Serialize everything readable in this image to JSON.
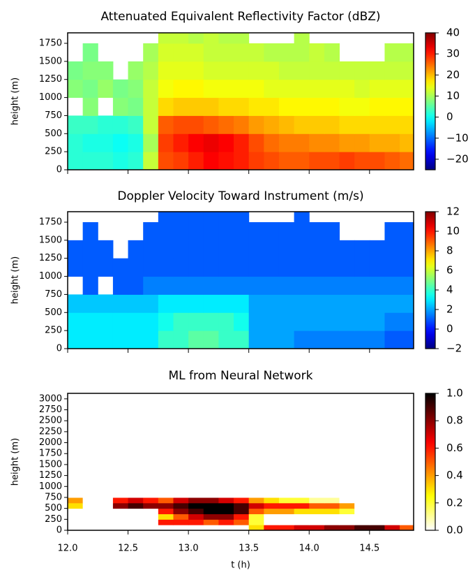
{
  "chart_data": [
    {
      "type": "heatmap",
      "title": "Attenuated Equivalent Reflectivity Factor (dBZ)",
      "ylabel": "height (m)",
      "colormap": "jet",
      "xbins": [
        12.0,
        12.125,
        12.25,
        12.375,
        12.5,
        12.625,
        12.75,
        12.875,
        13.0,
        13.125,
        13.25,
        13.375,
        13.5,
        13.625,
        13.75,
        13.875,
        14.0,
        14.125,
        14.25,
        14.375,
        14.5,
        14.625,
        14.75,
        14.865
      ],
      "ybins": [
        0,
        250,
        500,
        750,
        1000,
        1250,
        1500,
        1750,
        1895
      ],
      "values": [
        [
          2,
          2,
          2,
          1,
          2,
          12,
          27,
          28,
          30,
          32,
          31,
          30,
          28,
          27,
          26,
          26,
          27,
          27,
          28,
          27,
          27,
          26,
          25
        ],
        [
          2,
          1,
          1,
          0,
          1,
          10,
          28,
          30,
          32,
          33,
          32,
          30,
          27,
          25,
          24,
          24,
          23,
          23,
          22,
          22,
          21,
          21,
          20
        ],
        [
          3,
          3,
          2,
          2,
          3,
          12,
          26,
          27,
          27,
          26,
          25,
          24,
          22,
          21,
          20,
          19,
          19,
          19,
          18,
          18,
          18,
          18,
          18
        ],
        [
          null,
          8,
          null,
          8,
          7,
          12,
          18,
          19,
          19,
          19,
          18,
          18,
          17,
          17,
          16,
          16,
          16,
          16,
          15,
          15,
          16,
          16,
          16
        ],
        [
          8,
          7,
          9,
          7,
          8,
          12,
          15,
          16,
          16,
          15,
          15,
          15,
          15,
          14,
          14,
          14,
          14,
          14,
          14,
          13,
          14,
          14,
          14
        ],
        [
          7,
          8,
          8,
          null,
          9,
          11,
          14,
          14,
          14,
          13,
          13,
          13,
          13,
          13,
          12,
          12,
          12,
          12,
          12,
          12,
          12,
          12,
          12
        ],
        [
          null,
          7,
          null,
          null,
          null,
          10,
          13,
          13,
          13,
          12,
          12,
          12,
          12,
          11,
          11,
          11,
          12,
          11,
          null,
          null,
          null,
          11,
          11
        ],
        [
          null,
          null,
          null,
          null,
          null,
          null,
          12,
          12,
          11,
          12,
          11,
          11,
          null,
          null,
          null,
          11,
          null,
          null,
          null,
          null,
          null,
          null,
          null
        ]
      ],
      "xlim": [
        12.0,
        14.865
      ],
      "xticks": [
        12,
        12.5,
        13,
        13.5,
        14,
        14.5
      ],
      "ylim": [
        0,
        1895
      ],
      "yticks": [
        0,
        250,
        500,
        750,
        1000,
        1250,
        1500,
        1750
      ],
      "clim": [
        -25,
        40
      ],
      "cticks": [
        {
          "value": -20,
          "label": "−20"
        },
        {
          "value": -10,
          "label": "−10"
        },
        0,
        10,
        20,
        30,
        40
      ]
    },
    {
      "type": "heatmap",
      "title": "Doppler Velocity Toward Instrument (m/s)",
      "ylabel": "height (m)",
      "colormap": "jet",
      "xbins": [
        12.0,
        12.125,
        12.25,
        12.375,
        12.5,
        12.625,
        12.75,
        12.875,
        13.0,
        13.125,
        13.25,
        13.375,
        13.5,
        13.625,
        13.75,
        13.875,
        14.0,
        14.125,
        14.25,
        14.375,
        14.5,
        14.625,
        14.75,
        14.865
      ],
      "ybins": [
        0,
        250,
        500,
        750,
        1000,
        1250,
        1500,
        1750,
        1895
      ],
      "values": [
        [
          3,
          3,
          3,
          3,
          3,
          3,
          4,
          4,
          4.5,
          4.5,
          4,
          4,
          2,
          2,
          2,
          1.5,
          1.5,
          1.5,
          1.5,
          1.5,
          1.5,
          1,
          1
        ],
        [
          3,
          3,
          3,
          3,
          3,
          3,
          3.5,
          4,
          4,
          4,
          4,
          3.5,
          2,
          2,
          2,
          2,
          2,
          2,
          2,
          2,
          2,
          1.5,
          1.5
        ],
        [
          2.5,
          2.5,
          2.5,
          2.5,
          2.5,
          2.5,
          3,
          3,
          3,
          3,
          3,
          3,
          2,
          2,
          2,
          2,
          2,
          2,
          2,
          2,
          2,
          2,
          2
        ],
        [
          null,
          1,
          null,
          1,
          1,
          1.5,
          1.5,
          1.5,
          1.5,
          1.5,
          1.5,
          1.5,
          1.5,
          1.5,
          1.5,
          1.5,
          1.5,
          1.5,
          1.5,
          1.5,
          1.5,
          1.5,
          1.5
        ],
        [
          1,
          1,
          1,
          1,
          1,
          1,
          1,
          1,
          1,
          1,
          1,
          1,
          1,
          1,
          1,
          1,
          1,
          1,
          1,
          1,
          1,
          1,
          1
        ],
        [
          1,
          1,
          1,
          null,
          1,
          1,
          1,
          1,
          1,
          1,
          1,
          1,
          1,
          1,
          1,
          1,
          1,
          1,
          1,
          1,
          1,
          1,
          1
        ],
        [
          null,
          1,
          null,
          null,
          null,
          1,
          1,
          1,
          1,
          1,
          1,
          1,
          1,
          1,
          1,
          1,
          1,
          1,
          null,
          null,
          null,
          1,
          1
        ],
        [
          null,
          null,
          null,
          null,
          null,
          null,
          1,
          1,
          1,
          1,
          1,
          1,
          null,
          null,
          null,
          1,
          null,
          null,
          null,
          null,
          null,
          null,
          null
        ]
      ],
      "xlim": [
        12.0,
        14.865
      ],
      "xticks": [
        12,
        12.5,
        13,
        13.5,
        14,
        14.5
      ],
      "ylim": [
        0,
        1895
      ],
      "yticks": [
        0,
        250,
        500,
        750,
        1000,
        1250,
        1500,
        1750
      ],
      "clim": [
        -2,
        12
      ],
      "cticks": [
        {
          "value": -2,
          "label": "−2"
        },
        0,
        2,
        4,
        6,
        8,
        10,
        12
      ]
    },
    {
      "type": "heatmap",
      "title": "ML from Neural Network",
      "ylabel": "height (m)",
      "xlabel": "t (h)",
      "colormap": "hot_r",
      "xbins": [
        12.0,
        12.125,
        12.25,
        12.375,
        12.5,
        12.625,
        12.75,
        12.875,
        13.0,
        13.125,
        13.25,
        13.375,
        13.5,
        13.625,
        13.75,
        13.875,
        14.0,
        14.125,
        14.25,
        14.375,
        14.5,
        14.625,
        14.75,
        14.865
      ],
      "ybins": [
        0,
        125,
        250,
        375,
        500,
        625,
        750,
        3125
      ],
      "values": [
        [
          0,
          0,
          0,
          0,
          0,
          0,
          0,
          0,
          0,
          0,
          0,
          0,
          0.3,
          0.6,
          0.6,
          0.7,
          0.7,
          0.8,
          0.8,
          0.9,
          0.9,
          0.7,
          0.5
        ],
        [
          0,
          0,
          0,
          0,
          0,
          0,
          0.6,
          0.6,
          0.6,
          0.5,
          0.6,
          0.5,
          0.2,
          0,
          0,
          0,
          0,
          0,
          0,
          0,
          0,
          0,
          0
        ],
        [
          0,
          0,
          0,
          0,
          0,
          0,
          0.3,
          0.5,
          0.7,
          0.8,
          0.8,
          0.6,
          0.2,
          0,
          0,
          0,
          0,
          0,
          0,
          0,
          0,
          0,
          0
        ],
        [
          0,
          0,
          0,
          0,
          0,
          0,
          0.6,
          0.8,
          0.9,
          1,
          1,
          0.9,
          0.5,
          0.4,
          0.4,
          0.3,
          0.3,
          0.3,
          0.2,
          0,
          0,
          0,
          0
        ],
        [
          0.3,
          0,
          0,
          0.8,
          0.9,
          0.8,
          0.8,
          0.9,
          1,
          1,
          1,
          0.9,
          0.7,
          0.6,
          0.6,
          0.6,
          0.5,
          0.5,
          0.4,
          0,
          0,
          0,
          0
        ],
        [
          0.4,
          0,
          0,
          0.6,
          0.7,
          0.6,
          0.5,
          0.7,
          0.8,
          0.8,
          0.7,
          0.6,
          0.4,
          0.3,
          0.2,
          0.2,
          0.1,
          0.1,
          0,
          0,
          0,
          0,
          0
        ],
        [
          0,
          0,
          0,
          0,
          0,
          0,
          0,
          0,
          0,
          0,
          0,
          0,
          0,
          0,
          0,
          0,
          0,
          0,
          0,
          0,
          0,
          0,
          0
        ]
      ],
      "xlim": [
        12.0,
        14.865
      ],
      "xticks": [
        {
          "value": 12,
          "label": "12.0"
        },
        12.5,
        {
          "value": 13,
          "label": "13.0"
        },
        13.5,
        {
          "value": 14,
          "label": "14.0"
        },
        14.5
      ],
      "ylim": [
        0,
        3125
      ],
      "yticks": [
        0,
        250,
        500,
        750,
        1000,
        1250,
        1500,
        1750,
        2000,
        2250,
        2500,
        2750,
        3000
      ],
      "clim": [
        0,
        1
      ],
      "cticks": [
        {
          "value": 0,
          "label": "0.0"
        },
        {
          "value": 0.2,
          "label": "0.2"
        },
        {
          "value": 0.4,
          "label": "0.4"
        },
        {
          "value": 0.6,
          "label": "0.6"
        },
        {
          "value": 0.8,
          "label": "0.8"
        },
        {
          "value": 1,
          "label": "1.0"
        }
      ]
    }
  ]
}
